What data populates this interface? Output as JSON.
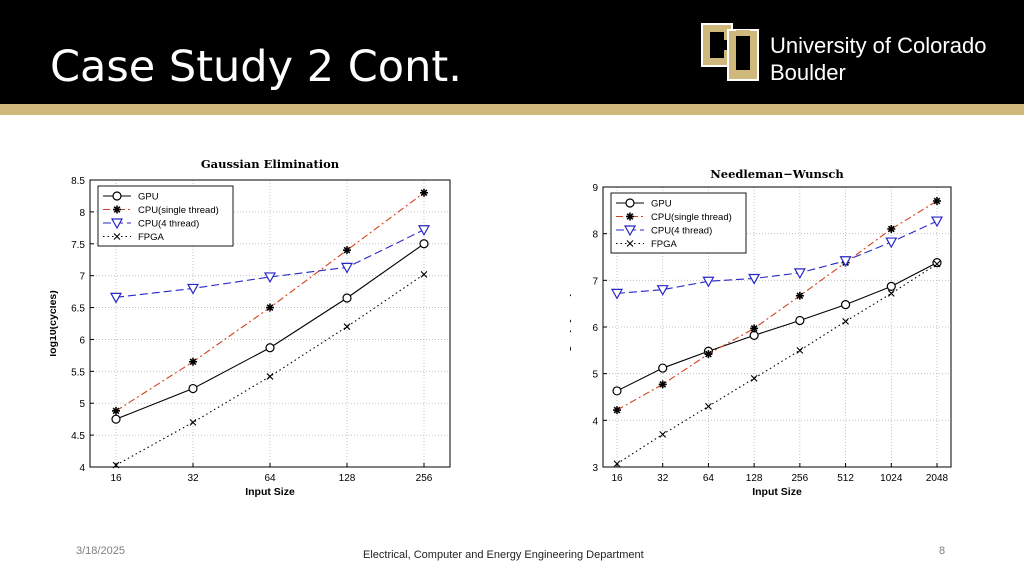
{
  "slide": {
    "title": "Case Study 2 Cont.",
    "logo_line1": "University of Colorado",
    "logo_line2": "Boulder",
    "date": "3/18/2025",
    "department": "Electrical, Computer and Energy Engineering Department",
    "page_number": "8"
  },
  "colors": {
    "header_bg": "#000000",
    "gold": "#CFB87C",
    "gpu": "#000000",
    "cpu_single": "#d2421e",
    "cpu_4": "#2727c8",
    "fpga": "#000000"
  },
  "chart_data": [
    {
      "type": "line",
      "title": "Gaussian Elimination",
      "xlabel": "Input Size",
      "ylabel": "log10(cycles)",
      "categories": [
        "16",
        "32",
        "64",
        "128",
        "256"
      ],
      "ylim": [
        4,
        8.5
      ],
      "yticks": [
        "4",
        "4.5",
        "5",
        "5.5",
        "6",
        "6.5",
        "7",
        "7.5",
        "8",
        "8.5"
      ],
      "grid": true,
      "legend_position": "top-left",
      "series": [
        {
          "name": "GPU",
          "marker": "circle",
          "line": "solid",
          "values": [
            4.75,
            5.23,
            5.87,
            6.65,
            7.5
          ]
        },
        {
          "name": "CPU(single thread)",
          "marker": "star",
          "line": "dashdot",
          "values": [
            4.88,
            5.65,
            6.5,
            7.4,
            8.3
          ]
        },
        {
          "name": "CPU(4 thread)",
          "marker": "triangle-down",
          "line": "dashed",
          "values": [
            6.66,
            6.8,
            6.98,
            7.13,
            7.72
          ]
        },
        {
          "name": "FPGA",
          "marker": "x",
          "line": "dotted",
          "values": [
            4.03,
            4.7,
            5.42,
            6.2,
            7.02
          ]
        }
      ]
    },
    {
      "type": "line",
      "title": "Needleman−Wunsch",
      "xlabel": "Input Size",
      "ylabel": "log10(Cycles)",
      "categories": [
        "16",
        "32",
        "64",
        "128",
        "256",
        "512",
        "1024",
        "2048"
      ],
      "ylim": [
        3,
        9
      ],
      "yticks": [
        "3",
        "4",
        "5",
        "6",
        "7",
        "8",
        "9"
      ],
      "grid": true,
      "legend_position": "top-left",
      "series": [
        {
          "name": "GPU",
          "marker": "circle",
          "line": "solid",
          "values": [
            4.63,
            5.12,
            5.48,
            5.82,
            6.14,
            6.48,
            6.87,
            7.38
          ]
        },
        {
          "name": "CPU(single thread)",
          "marker": "star",
          "line": "dashdot",
          "values": [
            4.22,
            4.77,
            5.42,
            5.97,
            6.67,
            7.38,
            8.1,
            8.7
          ]
        },
        {
          "name": "CPU(4 thread)",
          "marker": "triangle-down",
          "line": "dashed",
          "values": [
            6.72,
            6.8,
            6.98,
            7.04,
            7.16,
            7.42,
            7.82,
            8.27
          ]
        },
        {
          "name": "FPGA",
          "marker": "x",
          "line": "dotted",
          "values": [
            3.07,
            3.7,
            4.3,
            4.9,
            5.5,
            6.12,
            6.72,
            7.35
          ]
        }
      ]
    }
  ]
}
